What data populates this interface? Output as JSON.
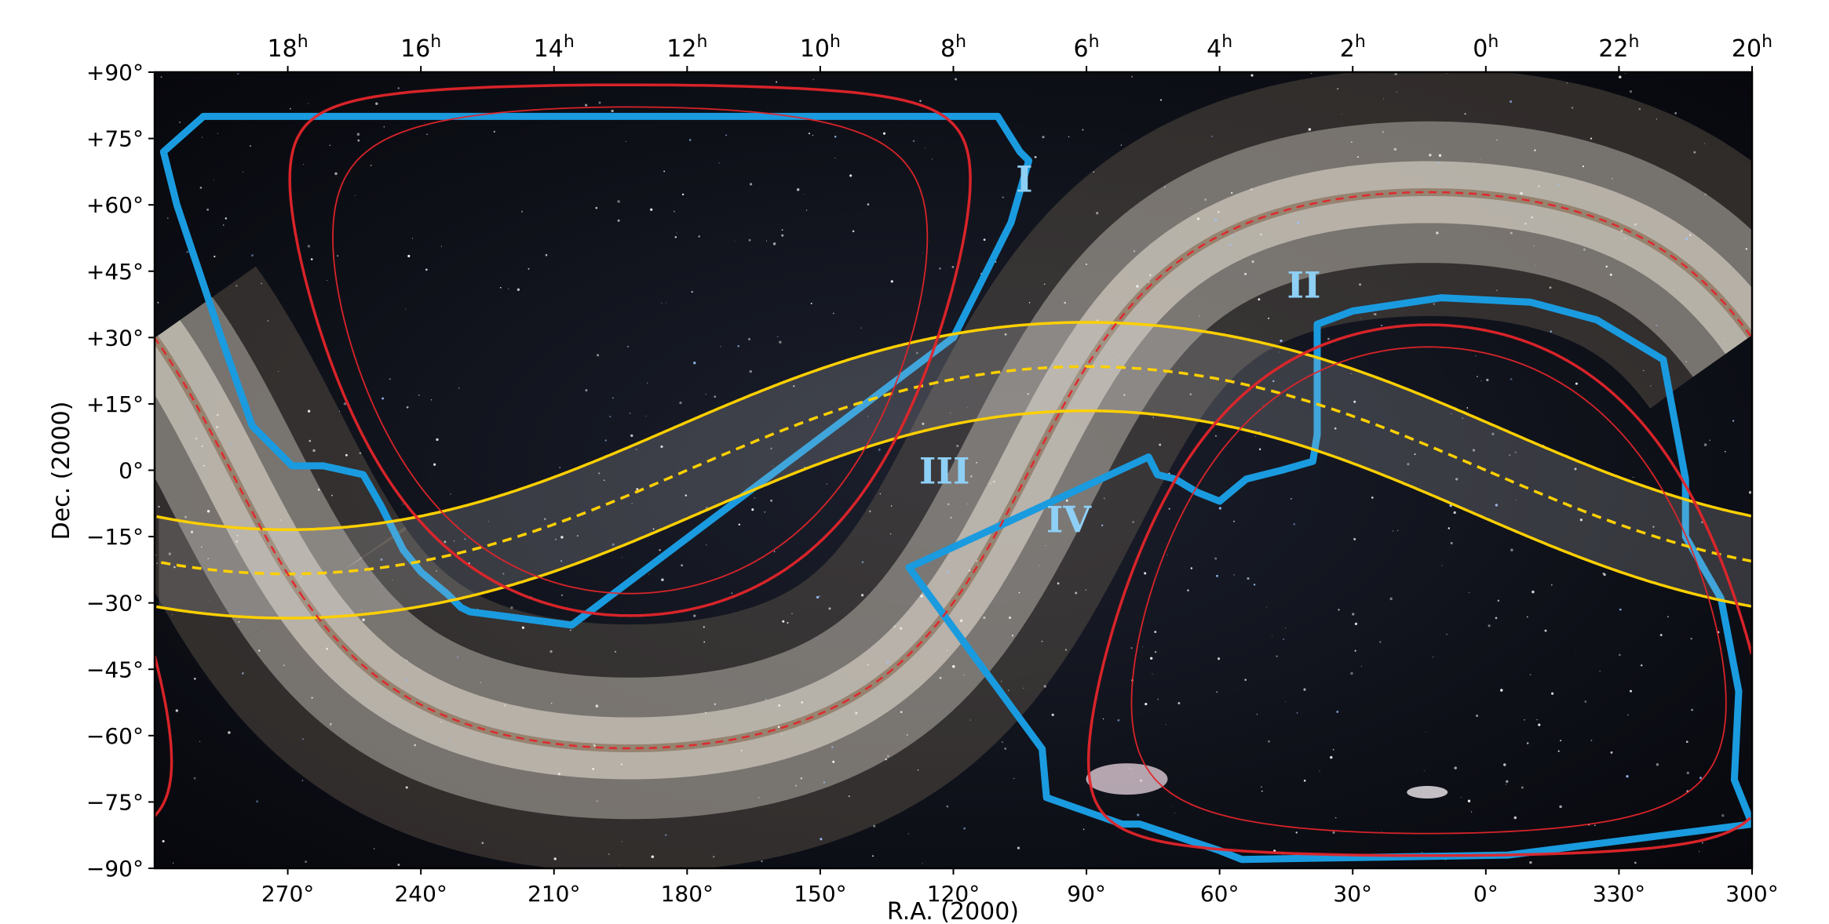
{
  "chart_data": {
    "type": "line",
    "xlabel": "R.A. (2000)",
    "ylabel": "Dec. (2000)",
    "xlim": [
      300,
      -60
    ],
    "ylim": [
      -90,
      90
    ],
    "x_ticks": [
      {
        "deg": 270,
        "label": "270°"
      },
      {
        "deg": 240,
        "label": "240°"
      },
      {
        "deg": 210,
        "label": "210°"
      },
      {
        "deg": 180,
        "label": "180°"
      },
      {
        "deg": 150,
        "label": "150°"
      },
      {
        "deg": 120,
        "label": "120°"
      },
      {
        "deg": 90,
        "label": "90°"
      },
      {
        "deg": 60,
        "label": "60°"
      },
      {
        "deg": 30,
        "label": "30°"
      },
      {
        "deg": 0,
        "label": "0°"
      },
      {
        "deg": -30,
        "label": "330°"
      },
      {
        "deg": -60,
        "label": "300°"
      }
    ],
    "top_ticks": [
      {
        "deg": 270,
        "h": "18",
        "sup": "h"
      },
      {
        "deg": 240,
        "h": "16",
        "sup": "h"
      },
      {
        "deg": 210,
        "h": "14",
        "sup": "h"
      },
      {
        "deg": 180,
        "h": "12",
        "sup": "h"
      },
      {
        "deg": 150,
        "h": "10",
        "sup": "h"
      },
      {
        "deg": 120,
        "h": "8",
        "sup": "h"
      },
      {
        "deg": 90,
        "h": "6",
        "sup": "h"
      },
      {
        "deg": 60,
        "h": "4",
        "sup": "h"
      },
      {
        "deg": 30,
        "h": "2",
        "sup": "h"
      },
      {
        "deg": 0,
        "h": "0",
        "sup": "h"
      },
      {
        "deg": -30,
        "h": "22",
        "sup": "h"
      },
      {
        "deg": -60,
        "h": "20",
        "sup": "h"
      }
    ],
    "y_ticks": [
      {
        "deg": 90,
        "label": "+90°"
      },
      {
        "deg": 75,
        "label": "+75°"
      },
      {
        "deg": 60,
        "label": "+60°"
      },
      {
        "deg": 45,
        "label": "+45°"
      },
      {
        "deg": 30,
        "label": "+30°"
      },
      {
        "deg": 15,
        "label": "+15°"
      },
      {
        "deg": 0,
        "label": "0°"
      },
      {
        "deg": -15,
        "label": "−15°"
      },
      {
        "deg": -30,
        "label": "−30°"
      },
      {
        "deg": -45,
        "label": "−45°"
      },
      {
        "deg": -60,
        "label": "−60°"
      },
      {
        "deg": -75,
        "label": "−75°"
      },
      {
        "deg": -90,
        "label": "−90°"
      }
    ],
    "region_labels": [
      {
        "text": "I",
        "ra": 104,
        "dec": 63
      },
      {
        "text": "II",
        "ra": 41,
        "dec": 39
      },
      {
        "text": "III",
        "ra": 122,
        "dec": -3
      },
      {
        "text": "IV",
        "ra": 94,
        "dec": -14
      }
    ],
    "regions": [
      {
        "id": "I",
        "ra": [
          298,
          289,
          200,
          110,
          105,
          103,
          107,
          120,
          206,
          229,
          231,
          234,
          240,
          244,
          246,
          249,
          253,
          262,
          269,
          278,
          285,
          295,
          298
        ],
        "dec": [
          72,
          80,
          80,
          80,
          72,
          70,
          56,
          30,
          -35,
          -32,
          -31,
          -28,
          -23,
          -18,
          -14,
          -8,
          -1,
          1,
          1,
          10,
          30,
          60,
          72
        ]
      },
      {
        "id": "II",
        "ra": [
          38,
          30,
          10,
          -10,
          -25,
          -40,
          -45,
          -45,
          -53,
          -57,
          -56,
          -60,
          -5,
          55,
          60,
          78,
          82,
          99,
          100,
          130,
          76,
          74,
          70,
          65,
          60,
          54,
          46,
          39,
          38,
          38
        ],
        "dec": [
          33,
          36,
          39,
          38,
          34,
          25,
          -2,
          -15,
          -29,
          -50,
          -70,
          -80,
          -87,
          -88,
          -86,
          -80,
          -80,
          -74,
          -63,
          -22,
          3,
          -1,
          -2,
          -5,
          -7,
          -2,
          0,
          2,
          8,
          33
        ]
      }
    ],
    "galactic_plane_ecliptic": [
      {
        "name": "",
        "color": "#ffd000",
        "style": "solid",
        "offset": 10
      },
      {
        "name": "",
        "color": "#ffd000",
        "style": "dashed",
        "offset": 0
      },
      {
        "name": "",
        "color": "#ffd000",
        "style": "solid",
        "offset": -10
      }
    ],
    "colors": {
      "region": "#1a9bdf",
      "galactic": "#e3252a",
      "ecliptic": "#ffd000",
      "label": "#8ecff5",
      "sky": "#11141f"
    }
  }
}
